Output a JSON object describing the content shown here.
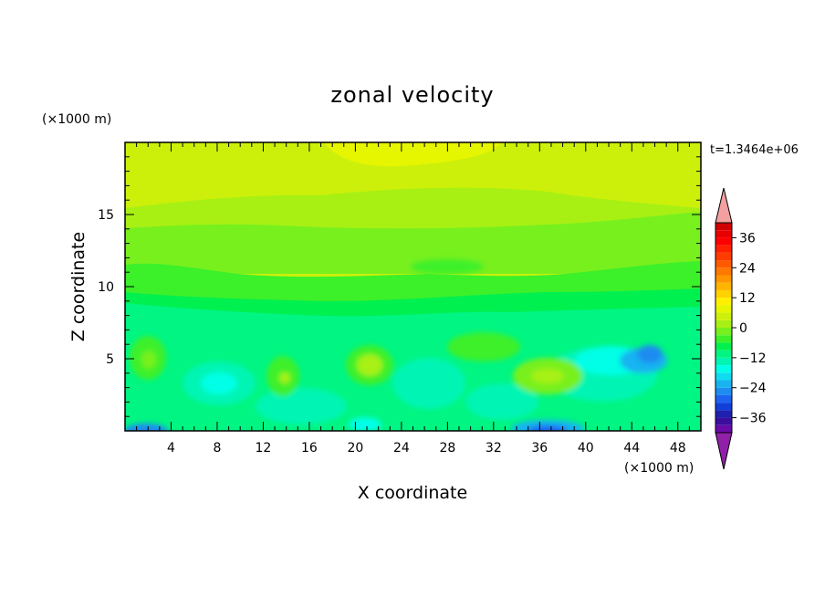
{
  "chart_data": {
    "type": "heatmap",
    "title": "zonal velocity",
    "xlabel": "X coordinate",
    "ylabel": "Z coordinate",
    "x_unit": "(×1000 m)",
    "z_unit": "(×1000 m)",
    "time_label": "t=1.3464e+06",
    "xlim": [
      0,
      50
    ],
    "ylim": [
      0,
      20
    ],
    "x_ticks": [
      4,
      8,
      12,
      16,
      20,
      24,
      28,
      32,
      36,
      40,
      44,
      48
    ],
    "y_ticks": [
      5,
      10,
      15
    ],
    "colorbar": {
      "levels": [
        -42,
        -39,
        -36,
        -33,
        -30,
        -27,
        -24,
        -21,
        -18,
        -15,
        -12,
        -9,
        -6,
        -3,
        0,
        3,
        6,
        9,
        12,
        15,
        18,
        21,
        24,
        27,
        30,
        33,
        36,
        39,
        42
      ],
      "tick_labels": [
        "36",
        "24",
        "12",
        "0",
        "−12",
        "−24",
        "−36"
      ],
      "tick_values": [
        36,
        24,
        12,
        0,
        -12,
        -24,
        -36
      ],
      "colors": [
        "#6a0aa8",
        "#3b0f9e",
        "#1f1fb0",
        "#1040d8",
        "#1e63f0",
        "#1e8cf0",
        "#18b4f0",
        "#10dcf0",
        "#00ffe6",
        "#00f5b4",
        "#00f582",
        "#00f050",
        "#3cf02a",
        "#78f01e",
        "#a8f014",
        "#ccf00a",
        "#e6f500",
        "#fff000",
        "#ffd200",
        "#ffb400",
        "#ff9600",
        "#ff7800",
        "#ff5a00",
        "#ff3c00",
        "#ff2000",
        "#ff0000",
        "#e80000",
        "#d00000"
      ],
      "under_color": "#9020a8",
      "over_color": "#f4a0a0"
    },
    "field_summary": [
      {
        "z_range": [
          17,
          20
        ],
        "value": 12,
        "note": "yellow band near top"
      },
      {
        "z_range": [
          11,
          17
        ],
        "value": 6
      },
      {
        "z_range": [
          9,
          11
        ],
        "value": 0
      },
      {
        "z_range": [
          0,
          9
        ],
        "value": -6
      }
    ]
  }
}
